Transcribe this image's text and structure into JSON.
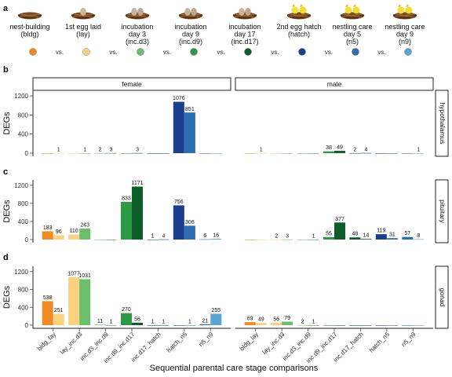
{
  "panel_letters": [
    "a",
    "b",
    "c",
    "d"
  ],
  "stages": [
    {
      "label": "nest-building\n(bldg)",
      "color": "#f08a24",
      "icon": "empty-nest-icon"
    },
    {
      "label": "1st egg laid\n(lay)",
      "color": "#fdd17f",
      "icon": "nest-one-egg-icon"
    },
    {
      "label": "incubation\nday 3\n(inc.d3)",
      "color": "#6cbf6a",
      "icon": "nest-eggs-icon"
    },
    {
      "label": "incubation\nday 9\n(inc.d9)",
      "color": "#2e9944",
      "icon": "nest-eggs-icon"
    },
    {
      "label": "incubation\nday 17\n(inc.d17)",
      "color": "#0b5e2a",
      "icon": "nest-eggs-icon"
    },
    {
      "label": "2nd egg hatch\n(hatch)",
      "color": "#1a3f8f",
      "icon": "nest-chicks-icon"
    },
    {
      "label": "nestling care\nday 5\n(n5)",
      "color": "#2f6db3",
      "icon": "nest-chicks-icon"
    },
    {
      "label": "nestling care\nday 9\n(n9)",
      "color": "#5ba3d0",
      "icon": "nest-chicks-icon"
    }
  ],
  "vs_label": "vs.",
  "chart_data": {
    "type": "bar",
    "categories": [
      "bldg_lay",
      "lay_inc.d3",
      "inc.d3_inc.d9",
      "inc.d9_inc.d17",
      "inc.d17_hatch",
      "hatch_n5",
      "n5_n9"
    ],
    "xlabel": "Sequential parental care stage comparisons",
    "ylabel": "DEGs",
    "ylim": [
      0,
      1250
    ],
    "yticks": [
      0,
      400,
      800,
      1200
    ],
    "facet_columns": [
      "female",
      "male"
    ],
    "facet_rows": [
      "hypothalamus",
      "pituitary",
      "gonad"
    ],
    "facet_panel_letters": [
      "b",
      "c",
      "d"
    ],
    "bar_colors": [
      "#f08a24",
      "#fdd17f",
      "#6cbf6a",
      "#2e9944",
      "#0b5e2a",
      "#1a3f8f",
      "#2f6db3",
      "#5ba3d0"
    ],
    "panels": [
      {
        "row": "hypothalamus",
        "column": "female",
        "values": [
          [
            0,
            1
          ],
          [
            0,
            1
          ],
          [
            2,
            3
          ],
          [
            0,
            3
          ],
          [
            0,
            0
          ],
          [
            1076,
            851
          ],
          [
            0,
            0
          ]
        ]
      },
      {
        "row": "hypothalamus",
        "column": "male",
        "values": [
          [
            0,
            1
          ],
          [
            0,
            0
          ],
          [
            0,
            0
          ],
          [
            38,
            49
          ],
          [
            2,
            4
          ],
          [
            0,
            0
          ],
          [
            0,
            1
          ]
        ]
      },
      {
        "row": "pituitary",
        "column": "female",
        "values": [
          [
            183,
            96
          ],
          [
            110,
            243
          ],
          [
            0,
            0
          ],
          [
            833,
            1171
          ],
          [
            1,
            4
          ],
          [
            756,
            306
          ],
          [
            6,
            16
          ]
        ]
      },
      {
        "row": "pituitary",
        "column": "male",
        "values": [
          [
            0,
            0
          ],
          [
            2,
            3
          ],
          [
            0,
            1
          ],
          [
            55,
            377
          ],
          [
            48,
            14
          ],
          [
            119,
            31
          ],
          [
            57,
            8
          ]
        ]
      },
      {
        "row": "gonad",
        "column": "female",
        "values": [
          [
            538,
            251
          ],
          [
            1077,
            1031
          ],
          [
            11,
            1
          ],
          [
            270,
            56
          ],
          [
            1,
            1
          ],
          [
            0,
            1
          ],
          [
            21,
            255
          ]
        ]
      },
      {
        "row": "gonad",
        "column": "male",
        "values": [
          [
            69,
            49
          ],
          [
            56,
            79
          ],
          [
            2,
            1
          ],
          [
            0,
            0
          ],
          [
            0,
            0
          ],
          [
            0,
            0
          ],
          [
            0,
            0
          ]
        ]
      }
    ]
  }
}
